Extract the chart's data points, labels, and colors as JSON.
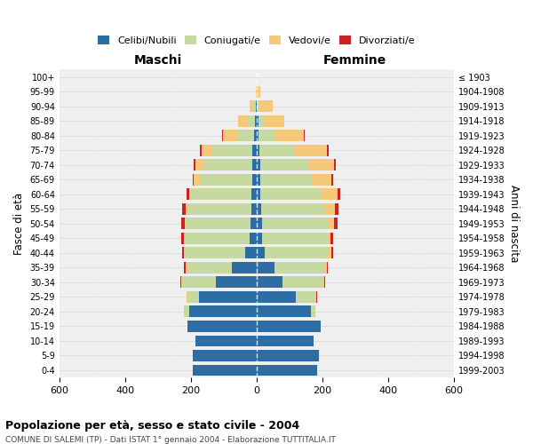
{
  "age_groups": [
    "0-4",
    "5-9",
    "10-14",
    "15-19",
    "20-24",
    "25-29",
    "30-34",
    "35-39",
    "40-44",
    "45-49",
    "50-54",
    "55-59",
    "60-64",
    "65-69",
    "70-74",
    "75-79",
    "80-84",
    "85-89",
    "90-94",
    "95-99",
    "100+"
  ],
  "birth_years": [
    "1999-2003",
    "1994-1998",
    "1989-1993",
    "1984-1988",
    "1979-1983",
    "1974-1978",
    "1969-1973",
    "1964-1968",
    "1959-1963",
    "1954-1958",
    "1949-1953",
    "1944-1948",
    "1939-1943",
    "1934-1938",
    "1929-1933",
    "1924-1928",
    "1919-1923",
    "1914-1918",
    "1909-1913",
    "1904-1908",
    "≤ 1903"
  ],
  "male_celibe": [
    195,
    195,
    185,
    210,
    205,
    175,
    125,
    75,
    35,
    20,
    18,
    16,
    16,
    12,
    12,
    12,
    8,
    5,
    2,
    0,
    0
  ],
  "male_coniugato": [
    0,
    0,
    0,
    0,
    15,
    35,
    100,
    135,
    185,
    200,
    195,
    195,
    185,
    160,
    150,
    120,
    50,
    20,
    5,
    0,
    0
  ],
  "male_vedovo": [
    0,
    0,
    0,
    0,
    0,
    2,
    3,
    5,
    2,
    2,
    5,
    5,
    5,
    18,
    25,
    35,
    45,
    30,
    15,
    2,
    0
  ],
  "male_divorziato": [
    0,
    0,
    0,
    0,
    0,
    2,
    3,
    5,
    5,
    8,
    10,
    10,
    8,
    5,
    5,
    5,
    2,
    0,
    0,
    0,
    0
  ],
  "female_celibe": [
    185,
    190,
    175,
    195,
    165,
    120,
    80,
    55,
    25,
    16,
    16,
    14,
    12,
    12,
    12,
    10,
    5,
    5,
    2,
    0,
    0
  ],
  "female_coniugata": [
    0,
    0,
    0,
    0,
    15,
    60,
    120,
    150,
    195,
    200,
    200,
    195,
    185,
    155,
    145,
    105,
    50,
    20,
    8,
    2,
    0
  ],
  "female_vedova": [
    0,
    0,
    0,
    0,
    0,
    3,
    5,
    8,
    8,
    10,
    20,
    30,
    50,
    60,
    80,
    100,
    90,
    60,
    40,
    10,
    2
  ],
  "female_divorziata": [
    0,
    0,
    0,
    0,
    0,
    2,
    3,
    5,
    5,
    8,
    10,
    10,
    8,
    5,
    5,
    5,
    2,
    0,
    0,
    0,
    0
  ],
  "colors": {
    "celibe": "#2E6DA4",
    "coniugato": "#C5D9A0",
    "vedovo": "#F5C87A",
    "divorziato": "#CC2222"
  },
  "title_main": "Popolazione per età, sesso e stato civile - 2004",
  "title_sub": "COMUNE DI SALEMI (TP) - Dati ISTAT 1° gennaio 2004 - Elaborazione TUTTITALIA.IT",
  "xlabel_left": "Maschi",
  "xlabel_right": "Femmine",
  "ylabel_left": "Fasce di età",
  "ylabel_right": "Anni di nascita",
  "xlim": 600,
  "bg_color": "#efefef",
  "legend_labels": [
    "Celibi/Nubili",
    "Coniugati/e",
    "Vedovi/e",
    "Divorziati/e"
  ]
}
